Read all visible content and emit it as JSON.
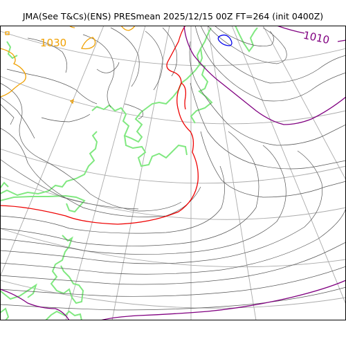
{
  "title": "JMA(See T&Cs)(ENS) PRESmean 2025/12/15 00Z FT=264 (init 0400Z)",
  "labels": {
    "high": "1030",
    "low": "1010"
  },
  "colors": {
    "isobar": "#555555",
    "graticule": "#aaaaaa",
    "coastline": "#80e880",
    "isobar_1030": "#f0a000",
    "isobar_1020": "#ee0000",
    "isobar_1010": "#800080",
    "isobar_1000": "#0000ee"
  }
}
